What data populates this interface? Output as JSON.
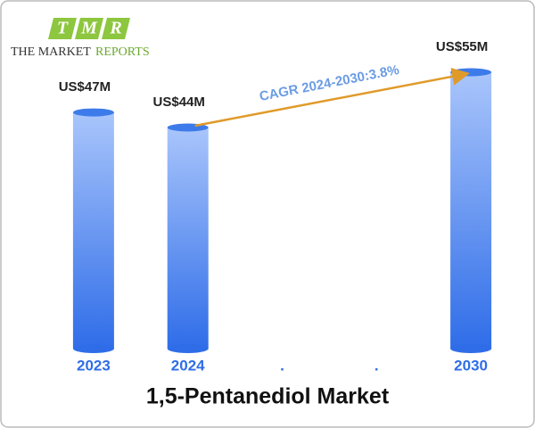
{
  "logo": {
    "letters": [
      "T",
      "M",
      "R"
    ],
    "text": "THE MARKET",
    "text_accent": "REPORTS"
  },
  "chart_data": {
    "type": "bar",
    "title": "1,5-Pentanediol Market",
    "categories": [
      "2023",
      "2024",
      ".",
      ".",
      "2030"
    ],
    "values": [
      47,
      44,
      null,
      null,
      55
    ],
    "value_labels": [
      "US$47M",
      "US$44M",
      null,
      null,
      "US$55M"
    ],
    "annotation": "CAGR 2024-2030:3.8%",
    "color": "#2f6de8"
  }
}
